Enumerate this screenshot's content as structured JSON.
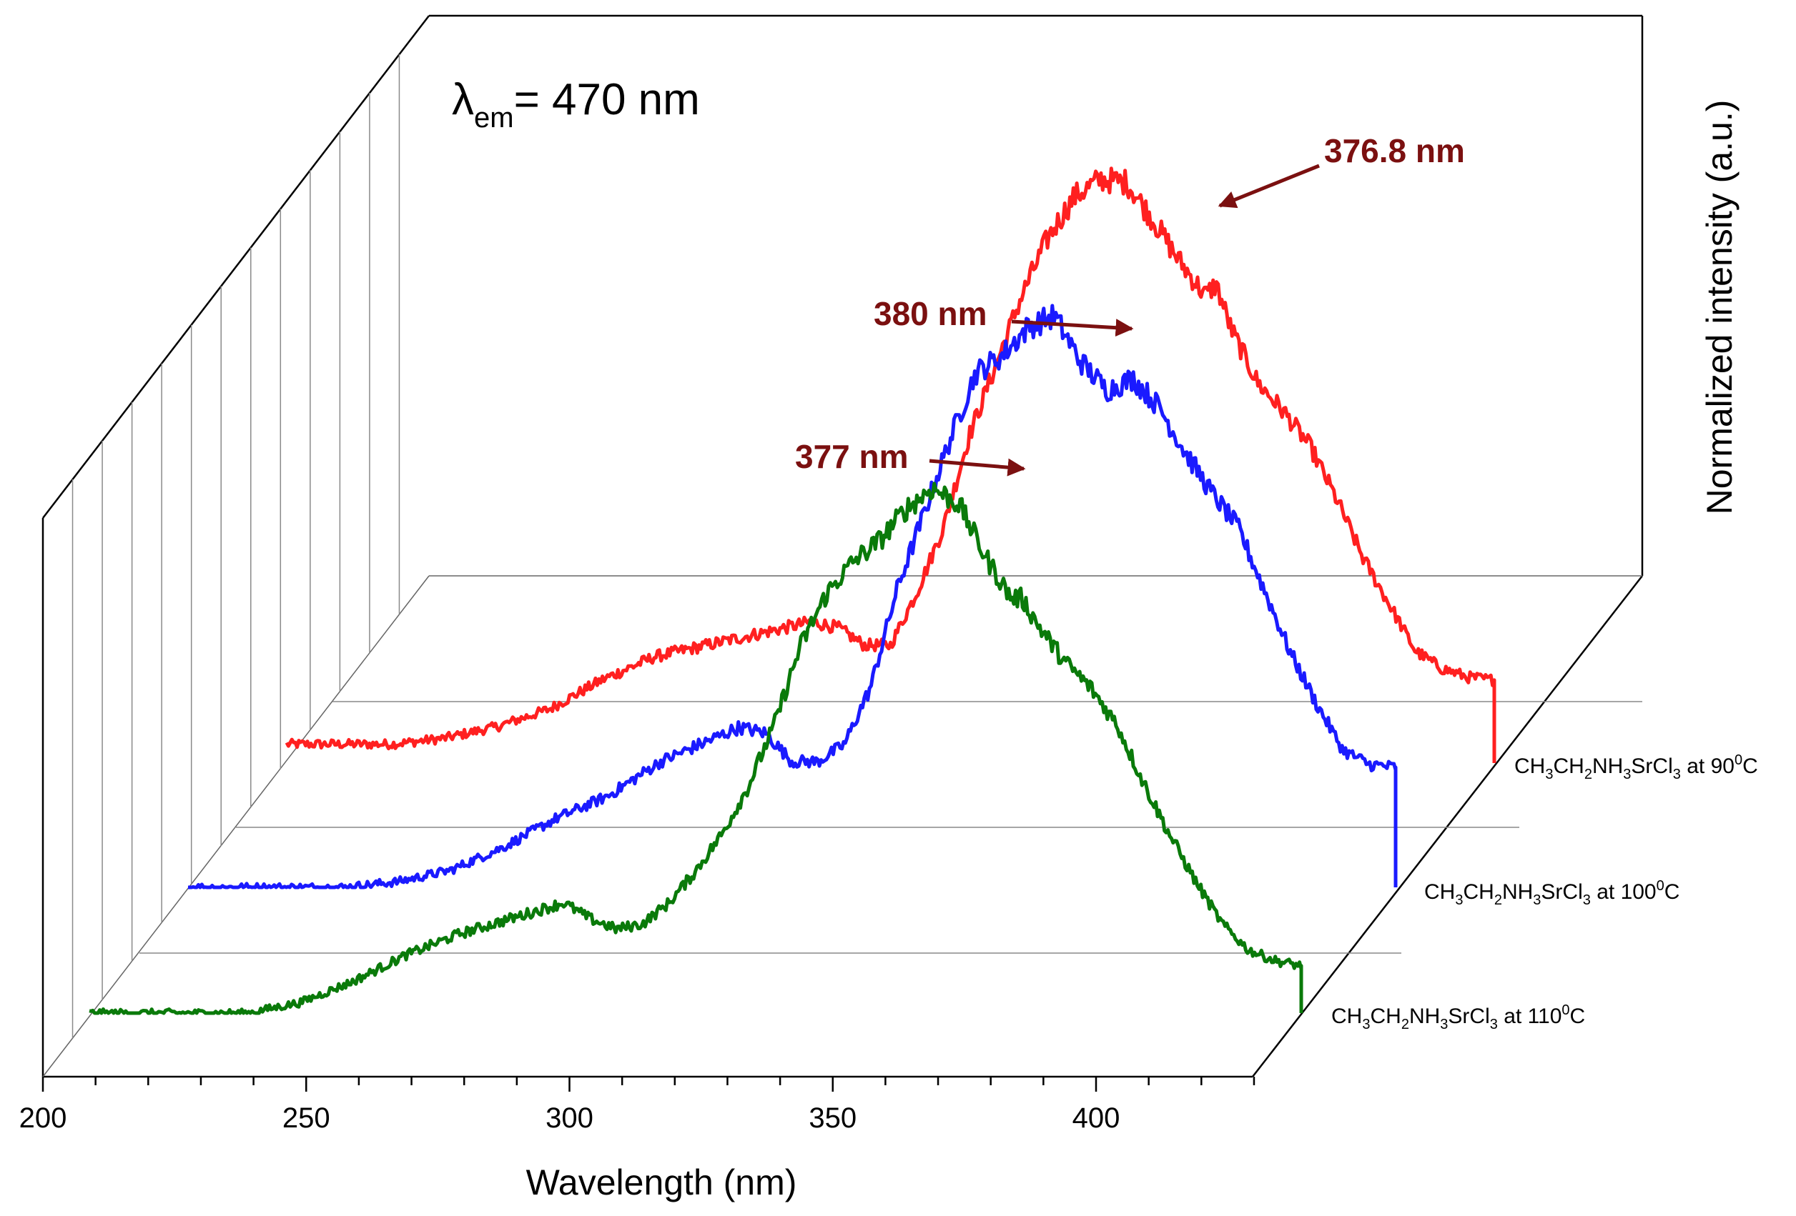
{
  "chart_data": {
    "type": "line",
    "projection": "3D waterfall",
    "title": "",
    "annotation": {
      "symbol": "λ",
      "subscript": "em",
      "rest": "= 470 nm"
    },
    "xlabel": "Wavelength (nm)",
    "ylabel": "Normalized intensity (a.u.)",
    "xlim": [
      200,
      430
    ],
    "x_ticks": [
      200,
      250,
      300,
      350,
      400
    ],
    "x_tick_labels": [
      "200",
      "250",
      "300",
      "350",
      "400"
    ],
    "colors": {
      "red": "#ff2020",
      "blue": "#1a1aff",
      "green": "#0a7a0a",
      "arrow": "#7b1010"
    },
    "series": [
      {
        "name": "CH3CH2NH3SrCl3 at 90°C",
        "label_parts": [
          "CH",
          "3",
          "CH",
          "2",
          "NH",
          "3",
          "SrCl",
          "3",
          " at 90",
          "0",
          "C"
        ],
        "color": "red",
        "depth": 2,
        "x": [
          200,
          210,
          220,
          230,
          240,
          250,
          260,
          270,
          280,
          290,
          300,
          305,
          310,
          315,
          320,
          325,
          330,
          335,
          340,
          345,
          350,
          355,
          360,
          365,
          370,
          375,
          377,
          380,
          385,
          390,
          395,
          400,
          405,
          410,
          415,
          420,
          425,
          430
        ],
        "y": [
          0.03,
          0.03,
          0.03,
          0.04,
          0.06,
          0.09,
          0.14,
          0.18,
          0.2,
          0.22,
          0.24,
          0.23,
          0.2,
          0.2,
          0.29,
          0.4,
          0.56,
          0.68,
          0.8,
          0.9,
          0.97,
          1.0,
          0.995,
          0.93,
          0.86,
          0.8,
          0.82,
          0.74,
          0.65,
          0.6,
          0.54,
          0.45,
          0.35,
          0.27,
          0.19,
          0.16,
          0.145,
          0.14
        ]
      },
      {
        "name": "CH3CH2NH3SrCl3 at 100°C",
        "label_parts": [
          "CH",
          "3",
          "CH",
          "2",
          "NH",
          "3",
          "SrCl",
          "3",
          " at 100",
          "0",
          "C"
        ],
        "color": "blue",
        "depth": 1,
        "x": [
          200,
          210,
          220,
          230,
          240,
          250,
          260,
          270,
          280,
          290,
          300,
          305,
          310,
          315,
          320,
          325,
          330,
          335,
          340,
          345,
          350,
          355,
          360,
          365,
          370,
          375,
          380,
          385,
          390,
          395,
          400,
          405,
          410,
          415,
          420,
          425,
          430
        ],
        "y": [
          0.0,
          0.0,
          0.0,
          0.0,
          0.01,
          0.03,
          0.07,
          0.12,
          0.16,
          0.22,
          0.26,
          0.28,
          0.27,
          0.22,
          0.22,
          0.25,
          0.35,
          0.52,
          0.65,
          0.78,
          0.9,
          0.93,
          0.98,
          1.0,
          0.92,
          0.87,
          0.89,
          0.84,
          0.76,
          0.69,
          0.63,
          0.52,
          0.41,
          0.32,
          0.24,
          0.215,
          0.21
        ]
      },
      {
        "name": "CH3CH2NH3SrCl3 at 110°C",
        "label_parts": [
          "CH",
          "3",
          "CH",
          "2",
          "NH",
          "3",
          "SrCl",
          "3",
          " at 110",
          "0",
          "C"
        ],
        "color": "green",
        "depth": 0,
        "x": [
          200,
          210,
          220,
          230,
          240,
          250,
          260,
          270,
          280,
          290,
          295,
          300,
          305,
          310,
          315,
          320,
          325,
          330,
          335,
          340,
          345,
          350,
          355,
          360,
          365,
          370,
          375,
          377,
          380,
          385,
          390,
          395,
          400,
          405,
          410,
          415,
          420,
          425,
          430
        ],
        "y": [
          0.0,
          0.0,
          0.0,
          0.0,
          0.02,
          0.06,
          0.11,
          0.15,
          0.18,
          0.21,
          0.18,
          0.16,
          0.17,
          0.21,
          0.27,
          0.34,
          0.43,
          0.55,
          0.7,
          0.8,
          0.86,
          0.9,
          0.96,
          1.0,
          0.97,
          0.87,
          0.79,
          0.79,
          0.74,
          0.67,
          0.62,
          0.55,
          0.44,
          0.34,
          0.25,
          0.17,
          0.12,
          0.1,
          0.09
        ]
      }
    ],
    "peaks": [
      {
        "label": "376.8 nm",
        "series": "CH3CH2NH3SrCl3 at 90°C"
      },
      {
        "label": "380 nm",
        "series": "CH3CH2NH3SrCl3 at 100°C"
      },
      {
        "label": "377 nm",
        "series": "CH3CH2NH3SrCl3 at 110°C"
      }
    ]
  }
}
